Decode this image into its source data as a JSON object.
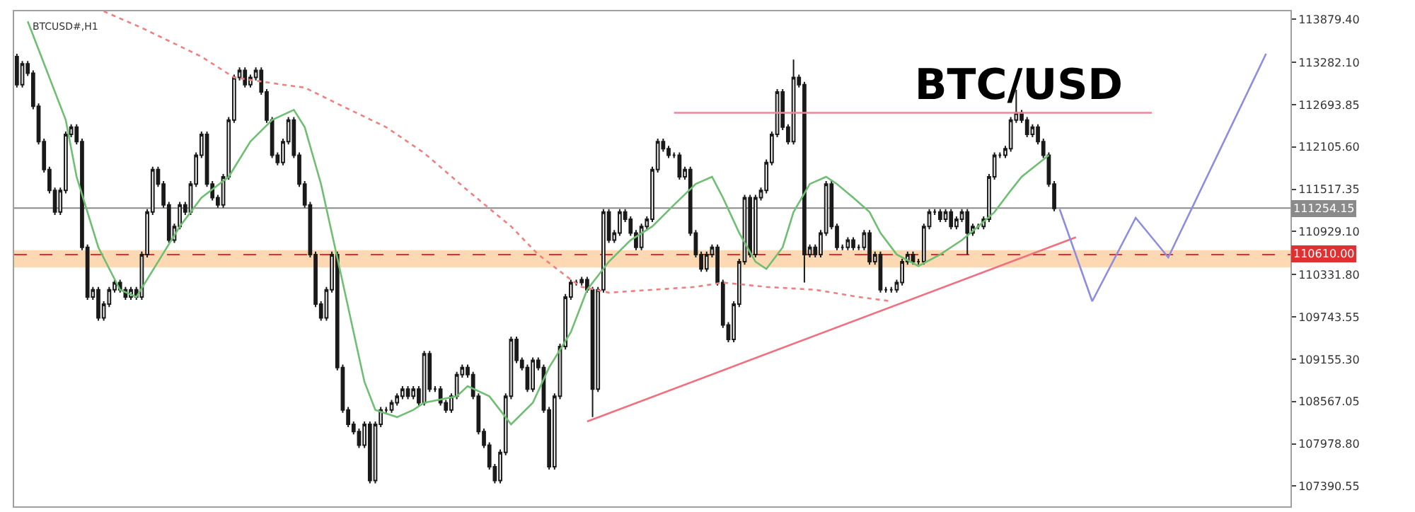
{
  "chart_data": {
    "type": "candlestick",
    "title": "BTC/USD",
    "annotations": [
      "BTCUSD#,H1"
    ],
    "color": "#1a1a1a",
    "tick_labels": "y",
    "categories": [
      null,
      null,
      null,
      null,
      null,
      null,
      null,
      null,
      null,
      null,
      null,
      null,
      null,
      null,
      null,
      null,
      null,
      null,
      null,
      null,
      null,
      null,
      null,
      null,
      null,
      null,
      null,
      null,
      null,
      null,
      null,
      null,
      null,
      null,
      null,
      null,
      null,
      null,
      null,
      null,
      null,
      null,
      null,
      null,
      null,
      null,
      null,
      null,
      null,
      null,
      null,
      null,
      null,
      null,
      null,
      null,
      null,
      null,
      null,
      null,
      null,
      null,
      null,
      null,
      null,
      null,
      null,
      null,
      null,
      null,
      null,
      null,
      null,
      null,
      null,
      null,
      null,
      null,
      null,
      null,
      null,
      null,
      null,
      null,
      null,
      null,
      null,
      null,
      null,
      null,
      null,
      null,
      null,
      null,
      null,
      null,
      null,
      null,
      null,
      null,
      null,
      null,
      null,
      null,
      null,
      null,
      null,
      null,
      null,
      null,
      null,
      null,
      null,
      null,
      null,
      null,
      null,
      null,
      null,
      null,
      null,
      null,
      null,
      null,
      null,
      null,
      null,
      null,
      null,
      null,
      null,
      null,
      null,
      null,
      null,
      null,
      null,
      null,
      null,
      null,
      null,
      null,
      null,
      null,
      null,
      null,
      null,
      null,
      null,
      null,
      null,
      null,
      null,
      null,
      null,
      null,
      null,
      null,
      null,
      null,
      null,
      null,
      null,
      null,
      null,
      null,
      null,
      null,
      null,
      null,
      null,
      null,
      null,
      null,
      null,
      null,
      null,
      null,
      null,
      null,
      null,
      null,
      null,
      null,
      null,
      null,
      null,
      null,
      null,
      null,
      null,
      null,
      null,
      null,
      null,
      null,
      null,
      null,
      null,
      null,
      null,
      null,
      null,
      null,
      null,
      null,
      null,
      null,
      null,
      null,
      null,
      null,
      null,
      null,
      null,
      null,
      null,
      null,
      null,
      null,
      null,
      null,
      null,
      null,
      null,
      null,
      null,
      null,
      null,
      null,
      null,
      null,
      null,
      null,
      null
    ],
    "ylim": [
      107110,
      113990
    ],
    "yticks": [
      {
        "value": 113879.4,
        "label": "113879.40"
      },
      {
        "value": 113282.1,
        "label": "113282.10"
      },
      {
        "value": 112693.85,
        "label": "112693.85"
      },
      {
        "value": 112105.6,
        "label": "112105.60"
      },
      {
        "value": 111517.35,
        "label": "111517.35"
      },
      {
        "value": 110929.1,
        "label": "110929.10"
      },
      {
        "value": 110331.8,
        "label": "110331.80"
      },
      {
        "value": 109743.55,
        "label": "109743.55"
      },
      {
        "value": 109155.3,
        "label": "109155.30"
      },
      {
        "value": 108567.05,
        "label": "108567.05"
      },
      {
        "value": 107978.8,
        "label": "107978.80"
      },
      {
        "value": 107390.55,
        "label": "107390.55"
      }
    ],
    "ref_lines": [
      {
        "axis": "y",
        "value": 111254.15,
        "label": "111254.15",
        "color": "#8a8a8a",
        "line_style": "solid"
      },
      {
        "axis": "y",
        "value": 110610.0,
        "label": "110610.00",
        "color": "#e03030",
        "line_style": "dashed"
      }
    ],
    "bands": [
      {
        "axis": "y",
        "from": 110430,
        "to": 110670,
        "color": "#fbd0a0"
      }
    ],
    "series": [
      {
        "type": "line",
        "color": "#6fbf73",
        "line_style": "solid",
        "values": [
          null,
          null,
          113850,
          null,
          null,
          null,
          null,
          null,
          null,
          112480,
          null,
          111690,
          null,
          null,
          null,
          110710,
          null,
          null,
          null,
          110120,
          null,
          null,
          110020,
          null,
          null,
          null,
          110510,
          null,
          null,
          null,
          111000,
          null,
          null,
          null,
          111400,
          null,
          null,
          null,
          null,
          111690,
          null,
          null,
          null,
          112180,
          null,
          null,
          null,
          112480,
          null,
          null,
          null,
          112620,
          null,
          112380,
          null,
          null,
          111590,
          null,
          null,
          null,
          110220,
          null,
          null,
          null,
          108840,
          null,
          108450,
          null,
          null,
          null,
          108350,
          null,
          null,
          108450,
          null,
          108550,
          null,
          null,
          null,
          null,
          null,
          108640,
          null,
          108780,
          null,
          null,
          null,
          108640,
          null,
          null,
          null,
          108250,
          null,
          null,
          null,
          108550,
          null,
          null,
          109040,
          null,
          null,
          null,
          109530,
          null,
          null,
          110120,
          null,
          null,
          null,
          110510,
          null,
          null,
          null,
          110810,
          null,
          null,
          null,
          111000,
          null,
          null,
          null,
          111300,
          null,
          null,
          null,
          111590,
          null,
          null,
          111690,
          null,
          111400,
          null,
          null,
          110910,
          null,
          null,
          110510,
          null,
          110410,
          null,
          null,
          110710,
          null,
          111200,
          null,
          null,
          111590,
          null,
          null,
          111690,
          null,
          111590,
          null,
          null,
          111400,
          null,
          null,
          111200,
          null,
          110910,
          null,
          null,
          110610,
          null,
          null,
          null,
          110450,
          null,
          null,
          null,
          110610,
          null,
          null,
          null,
          110810,
          null,
          null,
          111000,
          null,
          null,
          111200,
          null,
          null,
          111500,
          null,
          111690,
          null,
          null,
          null,
          null,
          111990,
          null,
          null,
          null,
          null,
          null,
          null,
          null,
          null,
          null,
          null,
          null,
          null,
          null,
          null,
          null,
          null,
          null,
          null,
          null,
          null,
          null,
          null,
          null,
          null,
          null,
          null,
          null,
          null,
          null,
          null,
          null,
          null,
          null,
          null,
          null,
          null,
          null,
          null,
          null,
          null,
          null,
          null,
          null,
          null
        ]
      },
      {
        "type": "line",
        "color": "#f08080",
        "line_style": "dotted",
        "values": [
          null,
          null,
          null,
          null,
          null,
          null,
          null,
          null,
          null,
          null,
          null,
          null,
          null,
          null,
          null,
          null,
          113990,
          null,
          null,
          null,
          null,
          null,
          null,
          113760,
          null,
          null,
          null,
          null,
          null,
          null,
          null,
          null,
          null,
          null,
          113360,
          null,
          null,
          null,
          null,
          null,
          113070,
          null,
          null,
          null,
          null,
          null,
          null,
          null,
          null,
          112970,
          null,
          null,
          null,
          112930,
          null,
          null,
          null,
          null,
          null,
          null,
          112670,
          null,
          null,
          null,
          null,
          null,
          null,
          null,
          112380,
          null,
          null,
          null,
          null,
          null,
          null,
          112020,
          null,
          null,
          null,
          null,
          null,
          null,
          null,
          111500,
          null,
          null,
          null,
          null,
          null,
          null,
          null,
          111000,
          null,
          null,
          null,
          null,
          110610,
          null,
          null,
          null,
          null,
          null,
          110260,
          null,
          110160,
          null,
          null,
          null,
          null,
          110080,
          null,
          null,
          null,
          null,
          null,
          null,
          null,
          110120,
          null,
          null,
          null,
          null,
          null,
          null,
          null,
          110160,
          null,
          null,
          null,
          null,
          110220,
          null,
          null,
          null,
          null,
          null,
          null,
          null,
          110160,
          null,
          null,
          null,
          null,
          null,
          null,
          null,
          null,
          110120,
          null,
          null,
          null,
          null,
          null,
          null,
          null,
          110020,
          null,
          null,
          null,
          null,
          null,
          109960,
          null,
          null,
          null,
          null,
          null,
          null,
          null,
          null,
          null,
          null,
          null,
          null,
          null,
          null,
          null,
          null,
          null,
          null,
          null,
          null,
          null,
          null,
          null,
          null,
          null,
          null,
          null,
          null,
          null,
          null,
          null,
          null,
          null,
          null,
          null,
          null,
          null,
          null,
          null,
          null,
          null,
          null,
          null,
          null,
          null,
          null,
          null,
          null,
          null,
          null,
          null,
          null,
          null,
          null,
          null,
          null,
          null,
          null,
          null,
          null,
          null,
          null,
          null,
          null,
          null,
          null,
          null,
          null,
          null,
          null,
          null,
          null,
          null
        ]
      },
      {
        "type": "line",
        "color": "#e88a9a",
        "line_style": "solid",
        "values": [
          null,
          null,
          null,
          null,
          null,
          null,
          null,
          null,
          null,
          null,
          null,
          null,
          null,
          null,
          null,
          null,
          null,
          null,
          null,
          null,
          null,
          null,
          null,
          null,
          null,
          null,
          null,
          null,
          null,
          null,
          null,
          null,
          null,
          null,
          null,
          null,
          null,
          null,
          null,
          null,
          null,
          null,
          null,
          null,
          null,
          null,
          null,
          null,
          null,
          null,
          null,
          null,
          null,
          null,
          null,
          null,
          null,
          null,
          null,
          null,
          null,
          null,
          null,
          null,
          null,
          null,
          null,
          null,
          null,
          null,
          null,
          null,
          null,
          null,
          null,
          null,
          null,
          null,
          null,
          null,
          null,
          null,
          null,
          null,
          null,
          null,
          null,
          null,
          null,
          null,
          null,
          null,
          null,
          null,
          null,
          null,
          null,
          null,
          null,
          null,
          null,
          null,
          null,
          null,
          null,
          null,
          null,
          null,
          null,
          null,
          null,
          null,
          null,
          null,
          null,
          null,
          null,
          null,
          null,
          null,
          null,
          112580,
          null,
          null,
          null,
          null,
          null,
          null,
          null,
          null,
          null,
          null,
          null,
          null,
          null,
          null,
          null,
          null,
          null,
          null,
          null,
          null,
          null,
          null,
          null,
          null,
          null,
          null,
          null,
          null,
          null,
          null,
          null,
          null,
          null,
          null,
          null,
          null,
          null,
          null,
          null,
          null,
          null,
          null,
          null,
          null,
          null,
          null,
          null,
          null,
          null,
          null,
          null,
          null,
          null,
          null,
          null,
          null,
          null,
          null,
          null,
          null,
          null,
          null,
          null,
          null,
          null,
          null,
          null,
          null,
          null,
          null,
          null,
          null,
          null,
          null,
          null,
          null,
          null,
          null,
          null,
          null,
          null,
          null,
          null,
          null,
          null,
          null,
          null,
          112580,
          null,
          null,
          null,
          null,
          null,
          null,
          null,
          null,
          null,
          null,
          null,
          null,
          null,
          null,
          null,
          null,
          null,
          null,
          null,
          null,
          null,
          null,
          null,
          null,
          null
        ]
      },
      {
        "type": "line",
        "color": "#f07080",
        "line_style": "solid",
        "values": [
          null,
          null,
          null,
          null,
          null,
          null,
          null,
          null,
          null,
          null,
          null,
          null,
          null,
          null,
          null,
          null,
          null,
          null,
          null,
          null,
          null,
          null,
          null,
          null,
          null,
          null,
          null,
          null,
          null,
          null,
          null,
          null,
          null,
          null,
          null,
          null,
          null,
          null,
          null,
          null,
          null,
          null,
          null,
          null,
          null,
          null,
          null,
          null,
          null,
          null,
          null,
          null,
          null,
          null,
          null,
          null,
          null,
          null,
          null,
          null,
          null,
          null,
          null,
          null,
          null,
          null,
          null,
          null,
          null,
          null,
          null,
          null,
          null,
          null,
          null,
          null,
          null,
          null,
          null,
          null,
          null,
          null,
          null,
          null,
          null,
          null,
          null,
          null,
          null,
          null,
          null,
          null,
          null,
          null,
          null,
          null,
          null,
          null,
          null,
          null,
          null,
          null,
          null,
          null,
          null,
          108290,
          null,
          null,
          null,
          null,
          null,
          null,
          null,
          null,
          null,
          null,
          null,
          null,
          null,
          null,
          null,
          null,
          null,
          null,
          null,
          null,
          null,
          null,
          null,
          null,
          null,
          null,
          null,
          null,
          null,
          null,
          null,
          null,
          null,
          null,
          null,
          null,
          null,
          null,
          null,
          null,
          null,
          null,
          null,
          null,
          null,
          null,
          null,
          null,
          null,
          null,
          null,
          null,
          null,
          null,
          null,
          null,
          null,
          null,
          null,
          null,
          null,
          null,
          null,
          null,
          null,
          null,
          null,
          null,
          null,
          null,
          null,
          null,
          null,
          null,
          null,
          null,
          null,
          null,
          null,
          null,
          null,
          null,
          null,
          null,
          null,
          null,
          null,
          null,
          null,
          110850,
          null,
          null,
          null,
          null,
          null,
          null,
          null,
          null,
          null,
          null,
          null,
          null,
          null,
          null,
          null,
          null,
          null,
          null,
          null,
          null,
          null,
          null,
          null,
          null,
          null,
          null,
          null,
          null,
          null,
          null,
          null,
          null,
          null,
          null,
          null,
          null,
          null,
          null,
          null
        ]
      },
      {
        "type": "line",
        "color": "#8c8ce0",
        "line_style": "solid",
        "values": [
          null,
          null,
          null,
          null,
          null,
          null,
          null,
          null,
          null,
          null,
          null,
          null,
          null,
          null,
          null,
          null,
          null,
          null,
          null,
          null,
          null,
          null,
          null,
          null,
          null,
          null,
          null,
          null,
          null,
          null,
          null,
          null,
          null,
          null,
          null,
          null,
          null,
          null,
          null,
          null,
          null,
          null,
          null,
          null,
          null,
          null,
          null,
          null,
          null,
          null,
          null,
          null,
          null,
          null,
          null,
          null,
          null,
          null,
          null,
          null,
          null,
          null,
          null,
          null,
          null,
          null,
          null,
          null,
          null,
          null,
          null,
          null,
          null,
          null,
          null,
          null,
          null,
          null,
          null,
          null,
          null,
          null,
          null,
          null,
          null,
          null,
          null,
          null,
          null,
          null,
          null,
          null,
          null,
          null,
          null,
          null,
          null,
          null,
          null,
          null,
          null,
          null,
          null,
          null,
          null,
          null,
          null,
          null,
          null,
          null,
          null,
          null,
          null,
          null,
          null,
          null,
          null,
          null,
          null,
          null,
          null,
          null,
          null,
          null,
          null,
          null,
          null,
          null,
          null,
          null,
          null,
          null,
          null,
          null,
          null,
          null,
          null,
          null,
          null,
          null,
          null,
          null,
          null,
          null,
          null,
          null,
          null,
          null,
          null,
          null,
          null,
          null,
          null,
          null,
          null,
          null,
          null,
          null,
          null,
          null,
          null,
          null,
          null,
          null,
          null,
          null,
          null,
          null,
          null,
          null,
          null,
          null,
          null,
          null,
          null,
          null,
          null,
          null,
          null,
          null,
          null,
          null,
          null,
          null,
          null,
          null,
          null,
          null,
          null,
          null,
          null,
          null,
          111240,
          null,
          null,
          null,
          null,
          null,
          109960,
          null,
          null,
          null,
          null,
          null,
          null,
          null,
          111120,
          null,
          null,
          null,
          null,
          null,
          110570,
          null,
          null,
          null,
          null,
          null,
          null,
          null,
          null,
          null,
          null,
          null,
          null,
          null,
          null,
          null,
          null,
          null,
          113400,
          null,
          null,
          null,
          null
        ]
      }
    ],
    "ohlc": [
      [
        113360,
        113400,
        112930,
        112970
      ],
      [
        112970,
        113300,
        112930,
        113260
      ],
      [
        113260,
        113300,
        113090,
        113130
      ],
      [
        113130,
        113170,
        112630,
        112670
      ],
      [
        112670,
        112710,
        112140,
        112180
      ],
      [
        112180,
        112220,
        111750,
        111790
      ],
      [
        111790,
        111830,
        111460,
        111500
      ],
      [
        111500,
        111540,
        111160,
        111200
      ],
      [
        111200,
        111540,
        111160,
        111500
      ],
      [
        111500,
        112320,
        111460,
        112280
      ],
      [
        112280,
        112420,
        112240,
        112380
      ],
      [
        112380,
        112420,
        112140,
        112180
      ],
      [
        112180,
        112220,
        110670,
        110710
      ],
      [
        110710,
        110750,
        109980,
        110020
      ],
      [
        110020,
        110160,
        109980,
        110120
      ],
      [
        110120,
        110160,
        109690,
        109730
      ],
      [
        109730,
        109960,
        109690,
        109920
      ],
      [
        109920,
        110160,
        109880,
        110120
      ],
      [
        110120,
        110260,
        110080,
        110220
      ],
      [
        110220,
        110260,
        110080,
        110120
      ],
      [
        110120,
        110160,
        109980,
        110020
      ],
      [
        110020,
        110160,
        109980,
        110120
      ],
      [
        110120,
        110160,
        109980,
        110020
      ],
      [
        110020,
        110650,
        109980,
        110610
      ],
      [
        110610,
        111240,
        110570,
        111200
      ],
      [
        111200,
        111830,
        111160,
        111790
      ],
      [
        111790,
        111830,
        111550,
        111590
      ],
      [
        111590,
        111630,
        111260,
        111300
      ],
      [
        111300,
        111340,
        110770,
        110810
      ],
      [
        110810,
        111040,
        110770,
        111000
      ],
      [
        111000,
        111340,
        110960,
        111300
      ],
      [
        111300,
        111340,
        111160,
        111200
      ],
      [
        111200,
        111630,
        111160,
        111590
      ],
      [
        111590,
        112030,
        111550,
        111990
      ],
      [
        111990,
        112320,
        111950,
        112280
      ],
      [
        112280,
        112320,
        111550,
        111590
      ],
      [
        111590,
        111630,
        111360,
        111400
      ],
      [
        111400,
        111440,
        111260,
        111300
      ],
      [
        111300,
        111730,
        111260,
        111690
      ],
      [
        111690,
        112520,
        111650,
        112480
      ],
      [
        112480,
        113110,
        112440,
        113070
      ],
      [
        113070,
        113210,
        113030,
        113170
      ],
      [
        113170,
        113210,
        112930,
        112970
      ],
      [
        112970,
        113110,
        112930,
        113070
      ],
      [
        113070,
        113210,
        113030,
        113170
      ],
      [
        113170,
        113210,
        112830,
        112870
      ],
      [
        112870,
        112910,
        112440,
        112480
      ],
      [
        112480,
        112520,
        111950,
        111990
      ],
      [
        111990,
        112030,
        111850,
        111890
      ],
      [
        111890,
        112220,
        111850,
        112180
      ],
      [
        112180,
        112520,
        112140,
        112480
      ],
      [
        112480,
        112520,
        111950,
        111990
      ],
      [
        111990,
        112030,
        111550,
        111590
      ],
      [
        111590,
        111630,
        111260,
        111300
      ],
      [
        111300,
        111340,
        110570,
        110610
      ],
      [
        110610,
        110650,
        109880,
        109920
      ],
      [
        109920,
        109960,
        109690,
        109730
      ],
      [
        109730,
        110160,
        109690,
        110120
      ],
      [
        110120,
        110650,
        110080,
        110610
      ],
      [
        110610,
        110650,
        109000,
        109040
      ],
      [
        109040,
        109080,
        108410,
        108450
      ],
      [
        108450,
        108490,
        108210,
        108250
      ],
      [
        108250,
        108290,
        108110,
        108150
      ],
      [
        108150,
        108190,
        107920,
        107960
      ],
      [
        107960,
        108290,
        107920,
        108250
      ],
      [
        108250,
        108290,
        107430,
        107470
      ],
      [
        107470,
        108290,
        107430,
        108250
      ],
      [
        108250,
        108490,
        108210,
        108450
      ],
      [
        108450,
        108490,
        108410,
        108450
      ],
      [
        108450,
        108590,
        108410,
        108550
      ],
      [
        108550,
        108680,
        108510,
        108640
      ],
      [
        108640,
        108780,
        108600,
        108740
      ],
      [
        108740,
        108780,
        108600,
        108640
      ],
      [
        108640,
        108780,
        108600,
        108740
      ],
      [
        108740,
        108780,
        108510,
        108550
      ],
      [
        108550,
        109270,
        108510,
        109230
      ],
      [
        109230,
        109270,
        108700,
        108740
      ],
      [
        108740,
        108780,
        108700,
        108740
      ],
      [
        108740,
        108780,
        108510,
        108550
      ],
      [
        108550,
        108590,
        108410,
        108450
      ],
      [
        108450,
        108680,
        108410,
        108640
      ],
      [
        108640,
        108980,
        108600,
        108940
      ],
      [
        108940,
        109080,
        108900,
        109040
      ],
      [
        109040,
        109080,
        108900,
        108940
      ],
      [
        108940,
        108980,
        108600,
        108640
      ],
      [
        108640,
        108680,
        108110,
        108150
      ],
      [
        108150,
        108190,
        107920,
        107960
      ],
      [
        107960,
        108000,
        107620,
        107660
      ],
      [
        107660,
        107700,
        107430,
        107470
      ],
      [
        107470,
        107900,
        107430,
        107860
      ],
      [
        107860,
        108680,
        107820,
        108640
      ],
      [
        108640,
        109470,
        108600,
        109430
      ],
      [
        109430,
        109470,
        109100,
        109140
      ],
      [
        109140,
        109180,
        109000,
        109040
      ],
      [
        109040,
        109080,
        108700,
        108740
      ],
      [
        108740,
        109180,
        108700,
        109140
      ],
      [
        109140,
        109180,
        109000,
        109040
      ],
      [
        109040,
        109080,
        108410,
        108450
      ],
      [
        108450,
        108490,
        107620,
        107660
      ],
      [
        107660,
        108680,
        107620,
        108640
      ],
      [
        108640,
        109370,
        108600,
        109330
      ],
      [
        109330,
        110060,
        109290,
        110020
      ],
      [
        110020,
        110260,
        109980,
        110220
      ],
      [
        110220,
        110260,
        110180,
        110220
      ],
      [
        110220,
        110300,
        110180,
        110260
      ],
      [
        110260,
        110300,
        110080,
        110120
      ],
      [
        110120,
        110160,
        108350,
        108740
      ],
      [
        108740,
        110160,
        108700,
        110120
      ],
      [
        110120,
        111240,
        110080,
        111200
      ],
      [
        111200,
        111240,
        110770,
        110810
      ],
      [
        110810,
        110950,
        110770,
        110910
      ],
      [
        110910,
        111240,
        110870,
        111200
      ],
      [
        111200,
        111240,
        111060,
        111100
      ],
      [
        111100,
        111140,
        110870,
        110910
      ],
      [
        110910,
        110950,
        110670,
        110710
      ],
      [
        110710,
        111040,
        110670,
        111000
      ],
      [
        111000,
        111140,
        110960,
        111100
      ],
      [
        111100,
        111830,
        111060,
        111790
      ],
      [
        111790,
        112220,
        111750,
        112180
      ],
      [
        112180,
        112220,
        112040,
        112080
      ],
      [
        112080,
        112120,
        111950,
        111990
      ],
      [
        111990,
        112030,
        111950,
        111990
      ],
      [
        111990,
        112030,
        111650,
        111690
      ],
      [
        111690,
        111830,
        111650,
        111790
      ],
      [
        111790,
        111830,
        110870,
        110910
      ],
      [
        110910,
        110950,
        110570,
        110610
      ],
      [
        110610,
        110650,
        110370,
        110410
      ],
      [
        110410,
        110650,
        110370,
        110610
      ],
      [
        110610,
        110750,
        110570,
        110710
      ],
      [
        110710,
        110750,
        110180,
        110220
      ],
      [
        110220,
        110260,
        109590,
        109630
      ],
      [
        109630,
        109670,
        109390,
        109430
      ],
      [
        109430,
        109960,
        109390,
        109920
      ],
      [
        109920,
        110550,
        109880,
        110510
      ],
      [
        110510,
        111440,
        110470,
        111400
      ],
      [
        111400,
        111440,
        110570,
        110610
      ],
      [
        110610,
        111440,
        110570,
        111400
      ],
      [
        111400,
        111540,
        111360,
        111500
      ],
      [
        111500,
        111930,
        111460,
        111890
      ],
      [
        111890,
        112320,
        111850,
        112280
      ],
      [
        112280,
        112910,
        112240,
        112870
      ],
      [
        112870,
        112910,
        112340,
        112380
      ],
      [
        112380,
        112420,
        112140,
        112180
      ],
      [
        112180,
        113320,
        112140,
        113070
      ],
      [
        113070,
        113110,
        112930,
        112970
      ],
      [
        112970,
        113010,
        110220,
        110610
      ],
      [
        110610,
        110750,
        110570,
        110710
      ],
      [
        110710,
        110750,
        110570,
        110610
      ],
      [
        110610,
        110950,
        110570,
        110910
      ],
      [
        110910,
        111630,
        110870,
        111590
      ],
      [
        111590,
        111630,
        110960,
        111000
      ],
      [
        111000,
        111040,
        110670,
        110710
      ],
      [
        110710,
        110750,
        110670,
        110710
      ],
      [
        110710,
        110850,
        110670,
        110810
      ],
      [
        110810,
        110850,
        110670,
        110710
      ],
      [
        110710,
        110750,
        110670,
        110710
      ],
      [
        110710,
        110950,
        110670,
        110910
      ],
      [
        110910,
        110950,
        110470,
        110510
      ],
      [
        110510,
        110650,
        110470,
        110610
      ],
      [
        110610,
        110650,
        110080,
        110120
      ],
      [
        110120,
        110160,
        110080,
        110120
      ],
      [
        110120,
        110160,
        110080,
        110120
      ],
      [
        110120,
        110260,
        110080,
        110220
      ],
      [
        110220,
        110550,
        110180,
        110510
      ],
      [
        110510,
        110650,
        110470,
        110610
      ],
      [
        110610,
        110650,
        110470,
        110510
      ],
      [
        110510,
        110550,
        110470,
        110510
      ],
      [
        110510,
        111040,
        110470,
        111000
      ],
      [
        111000,
        111240,
        110960,
        111200
      ],
      [
        111200,
        111240,
        111160,
        111200
      ],
      [
        111200,
        111240,
        111060,
        111100
      ],
      [
        111100,
        111240,
        111060,
        111200
      ],
      [
        111200,
        111240,
        110960,
        111000
      ],
      [
        111000,
        111140,
        110960,
        111100
      ],
      [
        111100,
        111240,
        111060,
        111200
      ],
      [
        111200,
        111240,
        110610,
        110910
      ],
      [
        110910,
        111040,
        110870,
        111000
      ],
      [
        111000,
        111040,
        110960,
        111000
      ],
      [
        111000,
        111140,
        110960,
        111100
      ],
      [
        111100,
        111730,
        111060,
        111690
      ],
      [
        111690,
        112030,
        111650,
        111990
      ],
      [
        111990,
        112030,
        111950,
        111990
      ],
      [
        111990,
        112120,
        111950,
        112080
      ],
      [
        112080,
        112520,
        112040,
        112480
      ],
      [
        112480,
        112900,
        112440,
        112580
      ],
      [
        112580,
        112620,
        112440,
        112480
      ],
      [
        112480,
        112520,
        112240,
        112280
      ],
      [
        112280,
        112420,
        112240,
        112380
      ],
      [
        112380,
        112420,
        112140,
        112180
      ],
      [
        112180,
        112220,
        111950,
        111990
      ],
      [
        111990,
        112030,
        111550,
        111590
      ],
      [
        111590,
        111630,
        111210,
        111250
      ],
      null,
      null,
      null,
      null,
      null,
      null,
      null,
      null,
      null,
      null,
      null,
      null,
      null,
      null,
      null,
      null,
      null,
      null,
      null,
      null,
      null,
      null,
      null,
      null,
      null,
      null,
      null,
      null,
      null,
      null,
      null,
      null,
      null,
      null,
      null,
      null,
      null,
      null,
      null,
      null,
      null,
      null,
      null
    ]
  }
}
